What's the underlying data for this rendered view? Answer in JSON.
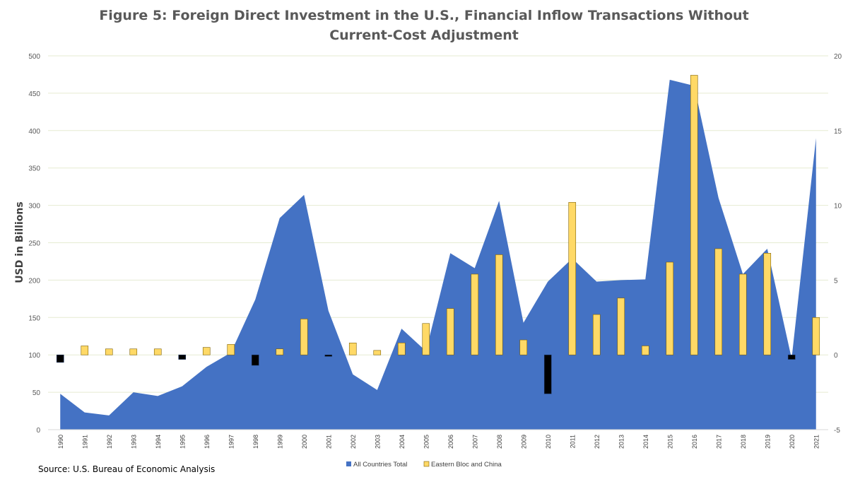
{
  "chart_data": {
    "type": "area",
    "title": "Figure 5: Foreign Direct Investment in the U.S., Financial Inflow Transactions Without Current-Cost Adjustment",
    "ylabel": "USD in Billions",
    "source": "Source: U.S. Bureau of Economic Analysis",
    "grid": true,
    "legend_position": "bottom",
    "categories": [
      "1990",
      "1991",
      "1992",
      "1993",
      "1994",
      "1995",
      "1996",
      "1997",
      "1998",
      "1999",
      "2000",
      "2001",
      "2002",
      "2003",
      "2004",
      "2005",
      "2006",
      "2007",
      "2008",
      "2009",
      "2010",
      "2011",
      "2012",
      "2013",
      "2014",
      "2015",
      "2016",
      "2017",
      "2018",
      "2019",
      "2020",
      "2021"
    ],
    "y_left": {
      "ylim": [
        0,
        500
      ],
      "ticks": [
        "0",
        "50",
        "100",
        "150",
        "200",
        "250",
        "300",
        "350",
        "400",
        "450",
        "500"
      ]
    },
    "y_right": {
      "ylim": [
        -5,
        20
      ],
      "ticks": [
        "-5",
        "0",
        "5",
        "10",
        "15",
        "20"
      ]
    },
    "series": [
      {
        "name": "All Countries Total",
        "type": "area",
        "axis": "left",
        "color": "#4472C4",
        "values": [
          48,
          23,
          19,
          50,
          45,
          58,
          84,
          103,
          174,
          283,
          314,
          159,
          74,
          53,
          135,
          105,
          236,
          216,
          306,
          143,
          198,
          229,
          198,
          200,
          201,
          468,
          460,
          310,
          208,
          242,
          95,
          390
        ]
      },
      {
        "name": "Eastern Bloc and China",
        "type": "bar",
        "axis": "right",
        "color": "#FFD966",
        "negative_color": "#000000",
        "values": [
          -0.5,
          0.6,
          0.4,
          0.4,
          0.4,
          -0.3,
          0.5,
          0.7,
          -0.7,
          0.4,
          2.4,
          -0.1,
          0.8,
          0.3,
          0.8,
          2.1,
          3.1,
          5.4,
          6.7,
          1.0,
          -2.6,
          10.2,
          2.7,
          3.8,
          0.6,
          6.2,
          18.7,
          7.1,
          5.4,
          6.8,
          -0.3,
          2.5
        ]
      }
    ]
  }
}
